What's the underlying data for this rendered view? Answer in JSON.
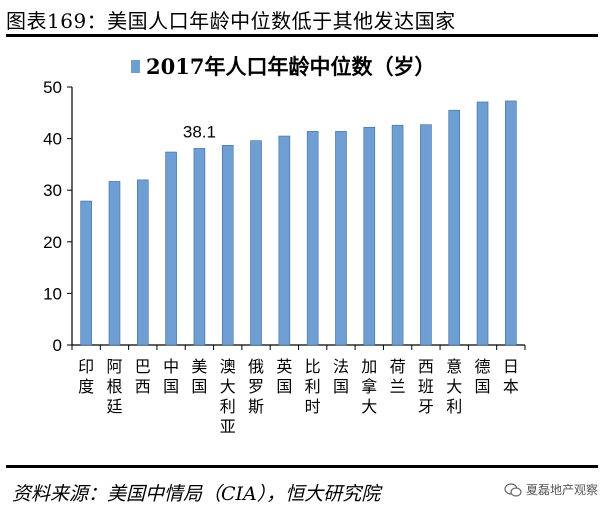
{
  "header": {
    "title": "图表169：美国人口年龄中位数低于其他发达国家"
  },
  "footer": {
    "source": "资料来源：美国中情局（CIA），恒大研究院",
    "watermark": "夏磊地产观察"
  },
  "colors": {
    "bar": "#6f9fd2",
    "bar_edge": "#3c6ca3"
  },
  "chart_data": {
    "type": "bar",
    "legend": "2017年人口年龄中位数（岁）",
    "legend_position": "top-center",
    "categories": [
      "印度",
      "阿根廷",
      "巴西",
      "中国",
      "美国",
      "澳大利亚",
      "俄罗斯",
      "英国",
      "比利时",
      "法国",
      "加拿大",
      "荷兰",
      "西班牙",
      "意大利",
      "德国",
      "日本"
    ],
    "values": [
      27.9,
      31.7,
      32.0,
      37.4,
      38.1,
      38.7,
      39.6,
      40.5,
      41.4,
      41.4,
      42.2,
      42.6,
      42.7,
      45.5,
      47.1,
      47.3
    ],
    "data_labels": [
      {
        "category": "美国",
        "text": "38.1"
      }
    ],
    "ylim": [
      0,
      50
    ],
    "yticks": [
      0,
      10,
      20,
      30,
      40,
      50
    ],
    "grid": false
  }
}
